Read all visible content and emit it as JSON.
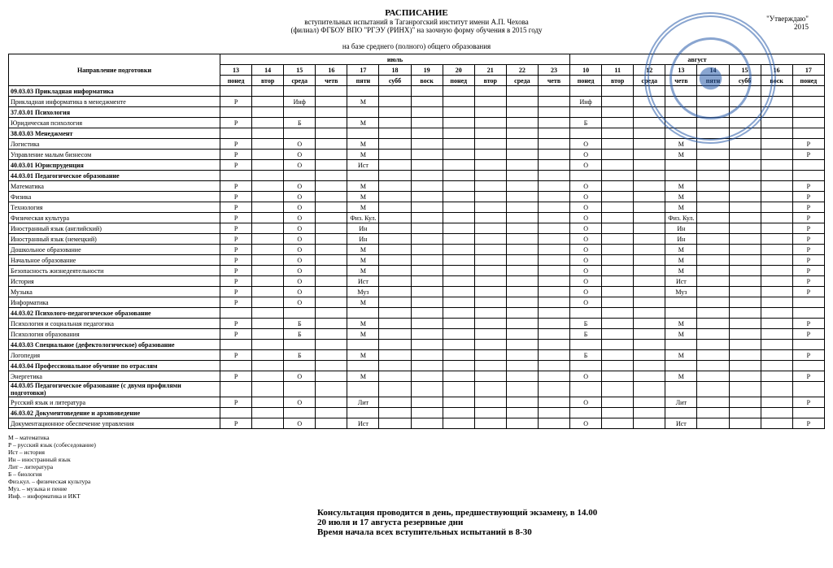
{
  "header": {
    "title": "РАСПИСАНИЕ",
    "sub1": "вступительных испытаний в Таганрогский институт имени А.П. Чехова",
    "sub2": "(филиал) ФГБОУ ВПО \"РГЭУ (РИНХ)\" на заочную форму обучения в 2015 году",
    "sub3": "на базе среднего (полного) общего образования"
  },
  "approve": {
    "l1": "\"Утверждаю\"",
    "l2": "2015"
  },
  "month1": "июль",
  "month2": "август",
  "dates": [
    "13",
    "14",
    "15",
    "16",
    "17",
    "18",
    "19",
    "20",
    "21",
    "22",
    "23",
    "10",
    "11",
    "12",
    "13",
    "14",
    "15",
    "16",
    "17"
  ],
  "days": [
    "понед",
    "втор",
    "среда",
    "четв",
    "пятн",
    "субб",
    "воск",
    "понед",
    "втор",
    "среда",
    "четв",
    "понед",
    "втор",
    "среда",
    "четв",
    "пятн",
    "субб",
    "воск",
    "понед"
  ],
  "name_header": "Направление подготовки",
  "rows": [
    {
      "b": true,
      "n": "09.03.03 Прикладная информатика",
      "c": {}
    },
    {
      "n": "Прикладная информатика в менеджменте",
      "c": {
        "0": "Р",
        "2": "Инф",
        "4": "М",
        "11": "Инф"
      }
    },
    {
      "b": true,
      "n": "37.03.01 Психология",
      "c": {}
    },
    {
      "n": "Юридическая психология",
      "c": {
        "0": "Р",
        "2": "Б",
        "4": "М",
        "11": "Б"
      }
    },
    {
      "b": true,
      "n": "38.03.03 Менеджмент",
      "c": {}
    },
    {
      "n": "Логистика",
      "c": {
        "0": "Р",
        "2": "О",
        "4": "М",
        "11": "О",
        "14": "М",
        "18": "Р"
      }
    },
    {
      "n": "Управление малым бизнесом",
      "c": {
        "0": "Р",
        "2": "О",
        "4": "М",
        "11": "О",
        "14": "М",
        "18": "Р"
      }
    },
    {
      "b": true,
      "n": "40.03.01 Юриспруденция",
      "c": {
        "0": "Р",
        "2": "О",
        "4": "Ист",
        "11": "О"
      }
    },
    {
      "b": true,
      "n": "44.03.01 Педагогическое образование",
      "c": {}
    },
    {
      "n": "Математика",
      "c": {
        "0": "Р",
        "2": "О",
        "4": "М",
        "11": "О",
        "14": "М",
        "18": "Р"
      }
    },
    {
      "n": "Физика",
      "c": {
        "0": "Р",
        "2": "О",
        "4": "М",
        "11": "О",
        "14": "М",
        "18": "Р"
      }
    },
    {
      "n": "Технология",
      "c": {
        "0": "Р",
        "2": "О",
        "4": "М",
        "11": "О",
        "14": "М",
        "18": "Р"
      }
    },
    {
      "n": "Физическая культура",
      "c": {
        "0": "Р",
        "2": "О",
        "4": "Физ. Кул.",
        "11": "О",
        "14": "Физ. Кул.",
        "18": "Р"
      }
    },
    {
      "n": "Иностранный язык (английский)",
      "c": {
        "0": "Р",
        "2": "О",
        "4": "Ин",
        "11": "О",
        "14": "Ин",
        "18": "Р"
      }
    },
    {
      "n": "Иностранный язык (немецкий)",
      "c": {
        "0": "Р",
        "2": "О",
        "4": "Ин",
        "11": "О",
        "14": "Ин",
        "18": "Р"
      }
    },
    {
      "n": "Дошкольное образование",
      "c": {
        "0": "Р",
        "2": "О",
        "4": "М",
        "11": "О",
        "14": "М",
        "18": "Р"
      }
    },
    {
      "n": "Начальное образование",
      "c": {
        "0": "Р",
        "2": "О",
        "4": "М",
        "11": "О",
        "14": "М",
        "18": "Р"
      }
    },
    {
      "n": "Безопасность жизнедеятельности",
      "c": {
        "0": "Р",
        "2": "О",
        "4": "М",
        "11": "О",
        "14": "М",
        "18": "Р"
      }
    },
    {
      "n": "История",
      "c": {
        "0": "Р",
        "2": "О",
        "4": "Ист",
        "11": "О",
        "14": "Ист",
        "18": "Р"
      }
    },
    {
      "n": "Музыка",
      "c": {
        "0": "Р",
        "2": "О",
        "4": "Муз",
        "11": "О",
        "14": "Муз",
        "18": "Р"
      }
    },
    {
      "n": "Информатика",
      "c": {
        "0": "Р",
        "2": "О",
        "4": "М",
        "11": "О"
      }
    },
    {
      "b": true,
      "n": "44.03.02 Психолого-педагогическое образование",
      "c": {}
    },
    {
      "n": "Психология и социальная педагогика",
      "c": {
        "0": "Р",
        "2": "Б",
        "4": "М",
        "11": "Б",
        "14": "М",
        "18": "Р"
      }
    },
    {
      "n": "Психология образования",
      "c": {
        "0": "Р",
        "2": "Б",
        "4": "М",
        "11": "Б",
        "14": "М",
        "18": "Р"
      }
    },
    {
      "b": true,
      "n": "44.03.03 Специальное (дефектологическое) образование",
      "c": {}
    },
    {
      "n": "Логопедия",
      "c": {
        "0": "Р",
        "2": "Б",
        "4": "М",
        "11": "Б",
        "14": "М",
        "18": "Р"
      }
    },
    {
      "b": true,
      "n": "44.03.04 Профессиональное обучение по отраслям",
      "c": {}
    },
    {
      "n": "Энергетика",
      "c": {
        "0": "Р",
        "2": "О",
        "4": "М",
        "11": "О",
        "14": "М",
        "18": "Р"
      }
    },
    {
      "b": true,
      "n": "44.03.05 Педагогическое образование (с двумя профилями подготовки)",
      "c": {}
    },
    {
      "n": "Русский язык и литература",
      "c": {
        "0": "Р",
        "2": "О",
        "4": "Лит",
        "11": "О",
        "14": "Лит",
        "18": "Р"
      }
    },
    {
      "b": true,
      "n": "46.03.02 Документоведение и архивоведение",
      "c": {}
    },
    {
      "n": "Документационное обеспечение управления",
      "c": {
        "0": "Р",
        "2": "О",
        "4": "Ист",
        "11": "О",
        "14": "Ист",
        "18": "Р"
      }
    }
  ],
  "legend": [
    "М – математика",
    "Р – русский язык (собеседование)",
    "Ист – история",
    "Ин – иностранный язык",
    "Лит – литература",
    "Б – биология",
    "Физ.кул. – физическая культура",
    "Муз. – музыка и пение",
    "Инф. – информатика и ИКТ"
  ],
  "footer": {
    "l1": "Консультация проводится в день, предшествующий экзамену, в 14.00",
    "l2": "20 июля и 17 августа резервные дни",
    "l3": "Время начала всех вступительных испытаний в 8-30"
  }
}
